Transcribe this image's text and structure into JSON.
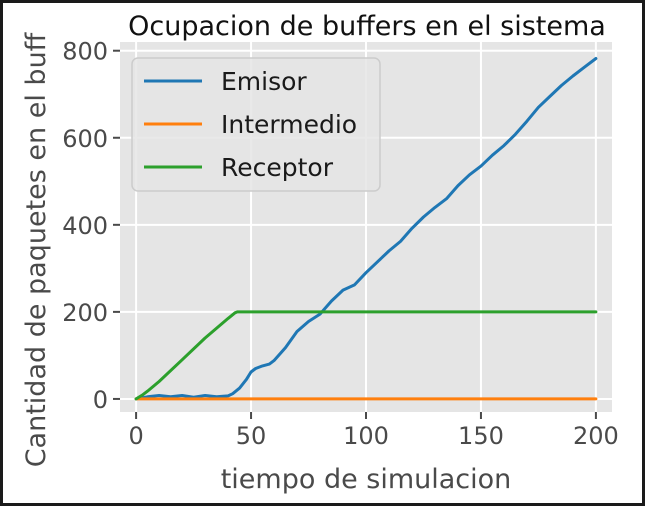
{
  "chart_data": {
    "type": "line",
    "title": "Ocupacion de buffers en el sistema",
    "xlabel": "tiempo de simulacion",
    "ylabel": "Cantidad de paquetes en el buff",
    "xlim": [
      -7,
      207
    ],
    "ylim": [
      -30,
      820
    ],
    "xticks": [
      0,
      50,
      100,
      150,
      200
    ],
    "yticks": [
      0,
      200,
      400,
      600,
      800
    ],
    "grid": true,
    "legend_position": "top-left",
    "background_color": "#e5e5e5",
    "series": [
      {
        "name": "Emisor",
        "color": "#1f77b4",
        "x": [
          0,
          5,
          10,
          15,
          20,
          25,
          30,
          35,
          40,
          42,
          45,
          48,
          50,
          52,
          55,
          58,
          60,
          65,
          70,
          75,
          80,
          85,
          90,
          95,
          100,
          105,
          110,
          115,
          120,
          125,
          130,
          135,
          140,
          145,
          150,
          155,
          160,
          165,
          170,
          175,
          180,
          185,
          190,
          195,
          200
        ],
        "y": [
          0,
          5,
          8,
          5,
          8,
          4,
          8,
          5,
          7,
          12,
          25,
          45,
          62,
          70,
          76,
          80,
          88,
          118,
          155,
          178,
          195,
          225,
          250,
          262,
          290,
          315,
          340,
          362,
          392,
          418,
          440,
          460,
          490,
          515,
          535,
          560,
          582,
          608,
          638,
          670,
          695,
          720,
          742,
          762,
          782
        ]
      },
      {
        "name": "Intermedio",
        "color": "#ff7f0e",
        "x": [
          0,
          50,
          100,
          150,
          200
        ],
        "y": [
          0,
          0,
          0,
          0,
          0
        ]
      },
      {
        "name": "Receptor",
        "color": "#2ca02c",
        "x": [
          0,
          3,
          5,
          10,
          20,
          30,
          40,
          43,
          44,
          100,
          150,
          200
        ],
        "y": [
          0,
          10,
          18,
          40,
          90,
          140,
          185,
          198,
          200,
          200,
          200,
          200
        ]
      }
    ]
  }
}
